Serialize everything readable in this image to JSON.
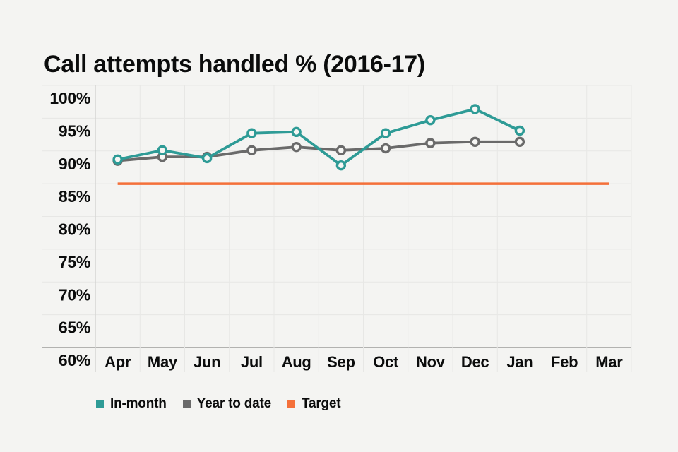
{
  "page": {
    "background": "#f4f4f2"
  },
  "title": "Call attempts handled % (2016-17)",
  "legend": {
    "items": [
      {
        "label": "In-month",
        "color": "#2e9b96"
      },
      {
        "label": "Year to date",
        "color": "#6a6a6a"
      },
      {
        "label": "Target",
        "color": "#f4703a"
      }
    ]
  },
  "chart_data": {
    "type": "line",
    "title": "Call attempts handled % (2016-17)",
    "categories": [
      "Apr",
      "May",
      "Jun",
      "Jul",
      "Aug",
      "Sep",
      "Oct",
      "Nov",
      "Dec",
      "Jan",
      "Feb",
      "Mar"
    ],
    "series": [
      {
        "name": "In-month",
        "color": "#2e9b96",
        "values": [
          88.7,
          90.1,
          88.9,
          92.7,
          92.9,
          87.8,
          92.7,
          94.7,
          96.4,
          93.1,
          null,
          null
        ]
      },
      {
        "name": "Year to date",
        "color": "#6a6a6a",
        "values": [
          88.5,
          89.1,
          89.1,
          90.1,
          90.6,
          90.1,
          90.4,
          91.2,
          91.4,
          91.4,
          null,
          null
        ]
      }
    ],
    "target": {
      "name": "Target",
      "value": 85,
      "color": "#f4703a",
      "span": [
        "Apr",
        "Mar"
      ]
    },
    "y_ticks": [
      "100%",
      "95%",
      "90%",
      "85%",
      "80%",
      "75%",
      "70%",
      "65%",
      "60%"
    ],
    "ylim": [
      60,
      100
    ],
    "xlabel": "",
    "ylabel": "",
    "grid": true,
    "legend_position": "bottom",
    "marker": "hollow-circle"
  }
}
